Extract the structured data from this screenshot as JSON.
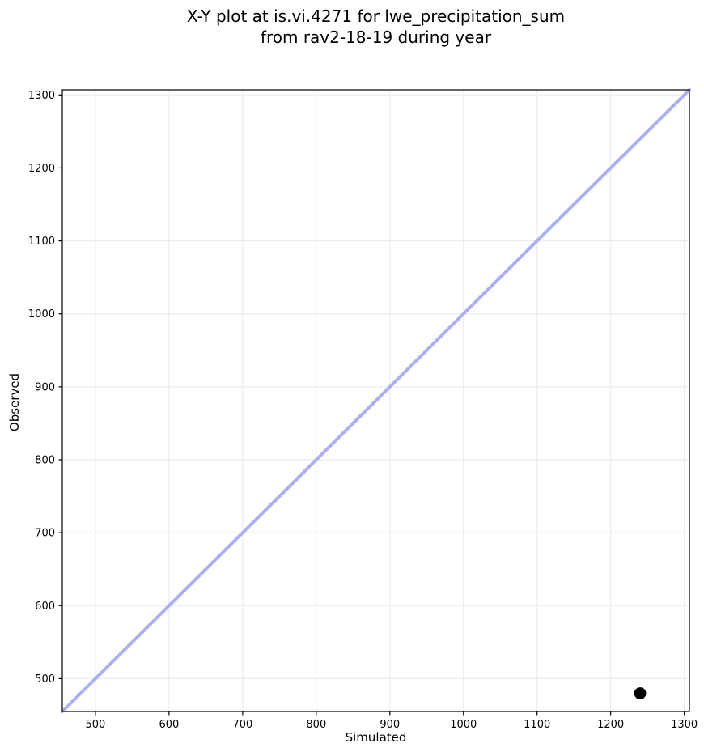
{
  "title": {
    "line1": "X-Y plot at is.vi.4271 for lwe_precipitation_sum",
    "line2": "from rav2-18-19 during year"
  },
  "chart_data": {
    "type": "scatter",
    "title": "X-Y plot at is.vi.4271 for lwe_precipitation_sum\nfrom rav2-18-19 during year",
    "xlabel": "Simulated",
    "ylabel": "Observed",
    "xlim": [
      455,
      1307
    ],
    "ylim": [
      455,
      1307
    ],
    "xticks": [
      500,
      600,
      700,
      800,
      900,
      1000,
      1100,
      1200,
      1300
    ],
    "yticks": [
      500,
      600,
      700,
      800,
      900,
      1000,
      1100,
      1200,
      1300
    ],
    "grid": true,
    "legend": false,
    "series": [
      {
        "name": "identity-line",
        "kind": "line",
        "color": "#aab0f3",
        "width": 4,
        "points": [
          {
            "x": 455,
            "y": 455
          },
          {
            "x": 1307,
            "y": 1307
          }
        ]
      },
      {
        "name": "simulated-vs-observed",
        "kind": "scatter",
        "color": "#000000",
        "marker_radius": 7.4,
        "points": [
          {
            "x": 1240,
            "y": 480
          }
        ]
      }
    ],
    "colors": {
      "grid": "#ececec",
      "spine": "#000000",
      "tick": "#000000",
      "tick_label": "#000000",
      "background": "#ffffff"
    }
  }
}
